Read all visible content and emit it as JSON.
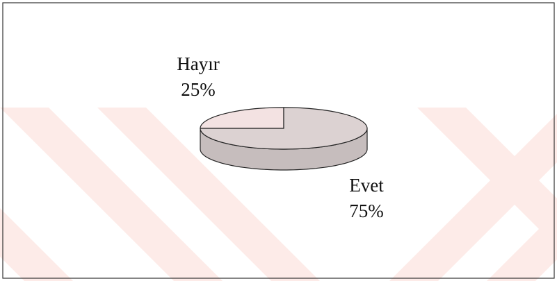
{
  "chart_data": {
    "type": "pie",
    "categories": [
      "Hayır",
      "Evet"
    ],
    "values": [
      25,
      75
    ],
    "value_labels": [
      "25%",
      "75%"
    ],
    "colors": [
      "#f3e2e2",
      "#dcd2d2"
    ]
  }
}
